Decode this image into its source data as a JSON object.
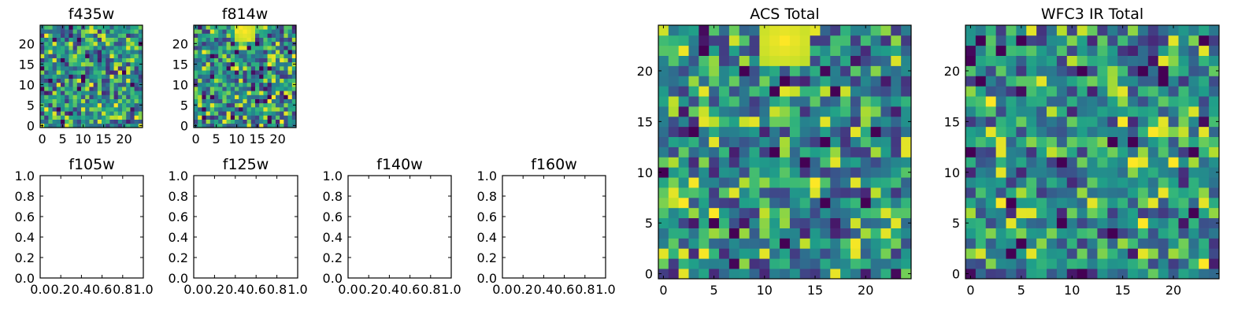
{
  "chart_data": [
    {
      "type": "heatmap",
      "title": "f435w",
      "xlim": [
        -0.5,
        24.5
      ],
      "ylim": [
        -0.5,
        24.5
      ],
      "xticks": [
        0,
        5,
        10,
        15,
        20
      ],
      "yticks": [
        0,
        5,
        10,
        15,
        20
      ],
      "xticklabels": [
        "0",
        "5",
        "10",
        "15",
        "20"
      ],
      "yticklabels": [
        "0",
        "5",
        "10",
        "15",
        "20"
      ],
      "grid_size": [
        25,
        25
      ],
      "colormap": "viridis",
      "pattern": "random noise",
      "seed": 11,
      "hot_spots": []
    },
    {
      "type": "heatmap",
      "title": "f814w",
      "xlim": [
        -0.5,
        24.5
      ],
      "ylim": [
        -0.5,
        24.5
      ],
      "xticks": [
        0,
        5,
        10,
        15,
        20
      ],
      "yticks": [
        0,
        5,
        10,
        15,
        20
      ],
      "xticklabels": [
        "0",
        "5",
        "10",
        "15",
        "20"
      ],
      "yticklabels": [
        "0",
        "5",
        "10",
        "15",
        "20"
      ],
      "grid_size": [
        25,
        25
      ],
      "colormap": "viridis",
      "pattern": "noise with bright source",
      "seed": 23,
      "hot_spots": [
        {
          "col": 12,
          "row": 23,
          "radius": 3
        }
      ]
    },
    {
      "type": "empty",
      "title": "f105w",
      "xlim": [
        0,
        1
      ],
      "ylim": [
        0,
        1
      ],
      "xticks": [
        0,
        0.2,
        0.4,
        0.6,
        0.8,
        1.0
      ],
      "yticks": [
        0,
        0.2,
        0.4,
        0.6,
        0.8,
        1.0
      ],
      "xticklabels": [
        "0.0",
        "0.2",
        "0.4",
        "0.6",
        "0.8",
        "1.0"
      ],
      "yticklabels": [
        "0.0",
        "0.2",
        "0.4",
        "0.6",
        "0.8",
        "1.0"
      ]
    },
    {
      "type": "empty",
      "title": "f125w",
      "xlim": [
        0,
        1
      ],
      "ylim": [
        0,
        1
      ],
      "xticks": [
        0,
        0.2,
        0.4,
        0.6,
        0.8,
        1.0
      ],
      "yticks": [
        0,
        0.2,
        0.4,
        0.6,
        0.8,
        1.0
      ],
      "xticklabels": [
        "0.0",
        "0.2",
        "0.4",
        "0.6",
        "0.8",
        "1.0"
      ],
      "yticklabels": [
        "0.0",
        "0.2",
        "0.4",
        "0.6",
        "0.8",
        "1.0"
      ]
    },
    {
      "type": "empty",
      "title": "f140w",
      "xlim": [
        0,
        1
      ],
      "ylim": [
        0,
        1
      ],
      "xticks": [
        0,
        0.2,
        0.4,
        0.6,
        0.8,
        1.0
      ],
      "yticks": [
        0,
        0.2,
        0.4,
        0.6,
        0.8,
        1.0
      ],
      "xticklabels": [
        "0.0",
        "0.2",
        "0.4",
        "0.6",
        "0.8",
        "1.0"
      ],
      "yticklabels": [
        "0.0",
        "0.2",
        "0.4",
        "0.6",
        "0.8",
        "1.0"
      ]
    },
    {
      "type": "empty",
      "title": "f160w",
      "xlim": [
        0,
        1
      ],
      "ylim": [
        0,
        1
      ],
      "xticks": [
        0,
        0.2,
        0.4,
        0.6,
        0.8,
        1.0
      ],
      "yticks": [
        0,
        0.2,
        0.4,
        0.6,
        0.8,
        1.0
      ],
      "xticklabels": [
        "0.0",
        "0.2",
        "0.4",
        "0.6",
        "0.8",
        "1.0"
      ],
      "yticklabels": [
        "0.0",
        "0.2",
        "0.4",
        "0.6",
        "0.8",
        "1.0"
      ]
    },
    {
      "type": "heatmap",
      "title": "ACS Total",
      "xlim": [
        -0.5,
        24.5
      ],
      "ylim": [
        -0.5,
        24.5
      ],
      "xticks": [
        0,
        5,
        10,
        15,
        20
      ],
      "yticks": [
        0,
        5,
        10,
        15,
        20
      ],
      "xticklabels": [
        "0",
        "5",
        "10",
        "15",
        "20"
      ],
      "yticklabels": [
        "0",
        "5",
        "10",
        "15",
        "20"
      ],
      "grid_size": [
        25,
        25
      ],
      "colormap": "viridis",
      "pattern": "noise with bright source",
      "seed": 37,
      "hot_spots": [
        {
          "col": 12,
          "row": 23,
          "radius": 3
        }
      ]
    },
    {
      "type": "heatmap",
      "title": "WFC3 IR Total",
      "xlim": [
        -0.5,
        24.5
      ],
      "ylim": [
        -0.5,
        24.5
      ],
      "xticks": [
        0,
        5,
        10,
        15,
        20
      ],
      "yticks": [
        0,
        5,
        10,
        15,
        20
      ],
      "xticklabels": [
        "0",
        "5",
        "10",
        "15",
        "20"
      ],
      "yticklabels": [
        "0",
        "5",
        "10",
        "15",
        "20"
      ],
      "grid_size": [
        25,
        25
      ],
      "colormap": "viridis",
      "pattern": "random noise",
      "seed": 53,
      "hot_spots": []
    }
  ]
}
